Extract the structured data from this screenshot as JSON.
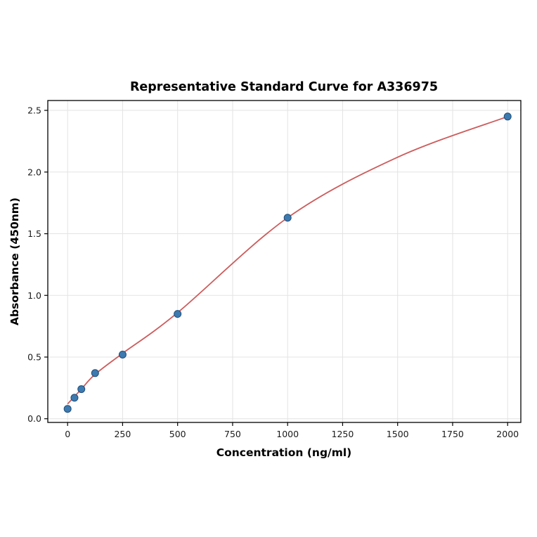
{
  "chart_data": {
    "type": "scatter",
    "title": "Representative Standard Curve for A336975",
    "xlabel": "Concentration (ng/ml)",
    "ylabel": "Absorbance (450nm)",
    "xlim": [
      -90,
      2060
    ],
    "ylim": [
      -0.03,
      2.58
    ],
    "grid": true,
    "legend": "none",
    "xticks": [
      0,
      250,
      500,
      750,
      1000,
      1250,
      1500,
      1750,
      2000
    ],
    "xtick_labels": [
      "0",
      "250",
      "500",
      "750",
      "1000",
      "1250",
      "1500",
      "1750",
      "2000"
    ],
    "yticks": [
      0,
      0.5,
      1.0,
      1.5,
      2.0,
      2.5
    ],
    "ytick_labels": [
      "0.0",
      "0.5",
      "1.0",
      "1.5",
      "2.0",
      "2.5"
    ],
    "points": {
      "x": [
        0,
        31.25,
        62.5,
        125,
        250,
        500,
        1000,
        2000
      ],
      "y": [
        0.08,
        0.17,
        0.24,
        0.37,
        0.52,
        0.85,
        1.63,
        2.45
      ]
    },
    "fit_curve": [
      [
        0,
        0.12
      ],
      [
        62.5,
        0.24
      ],
      [
        125,
        0.36
      ],
      [
        250,
        0.53
      ],
      [
        500,
        0.86
      ],
      [
        1000,
        1.63
      ],
      [
        1500,
        2.12
      ],
      [
        2000,
        2.45
      ]
    ],
    "colors": {
      "point_fill": "#3d7ab0",
      "point_edge": "#1f4e79",
      "curve": "#cd5c5c",
      "grid": "#e3e3e3",
      "frame": "#000000",
      "background": "#ffffff"
    }
  }
}
